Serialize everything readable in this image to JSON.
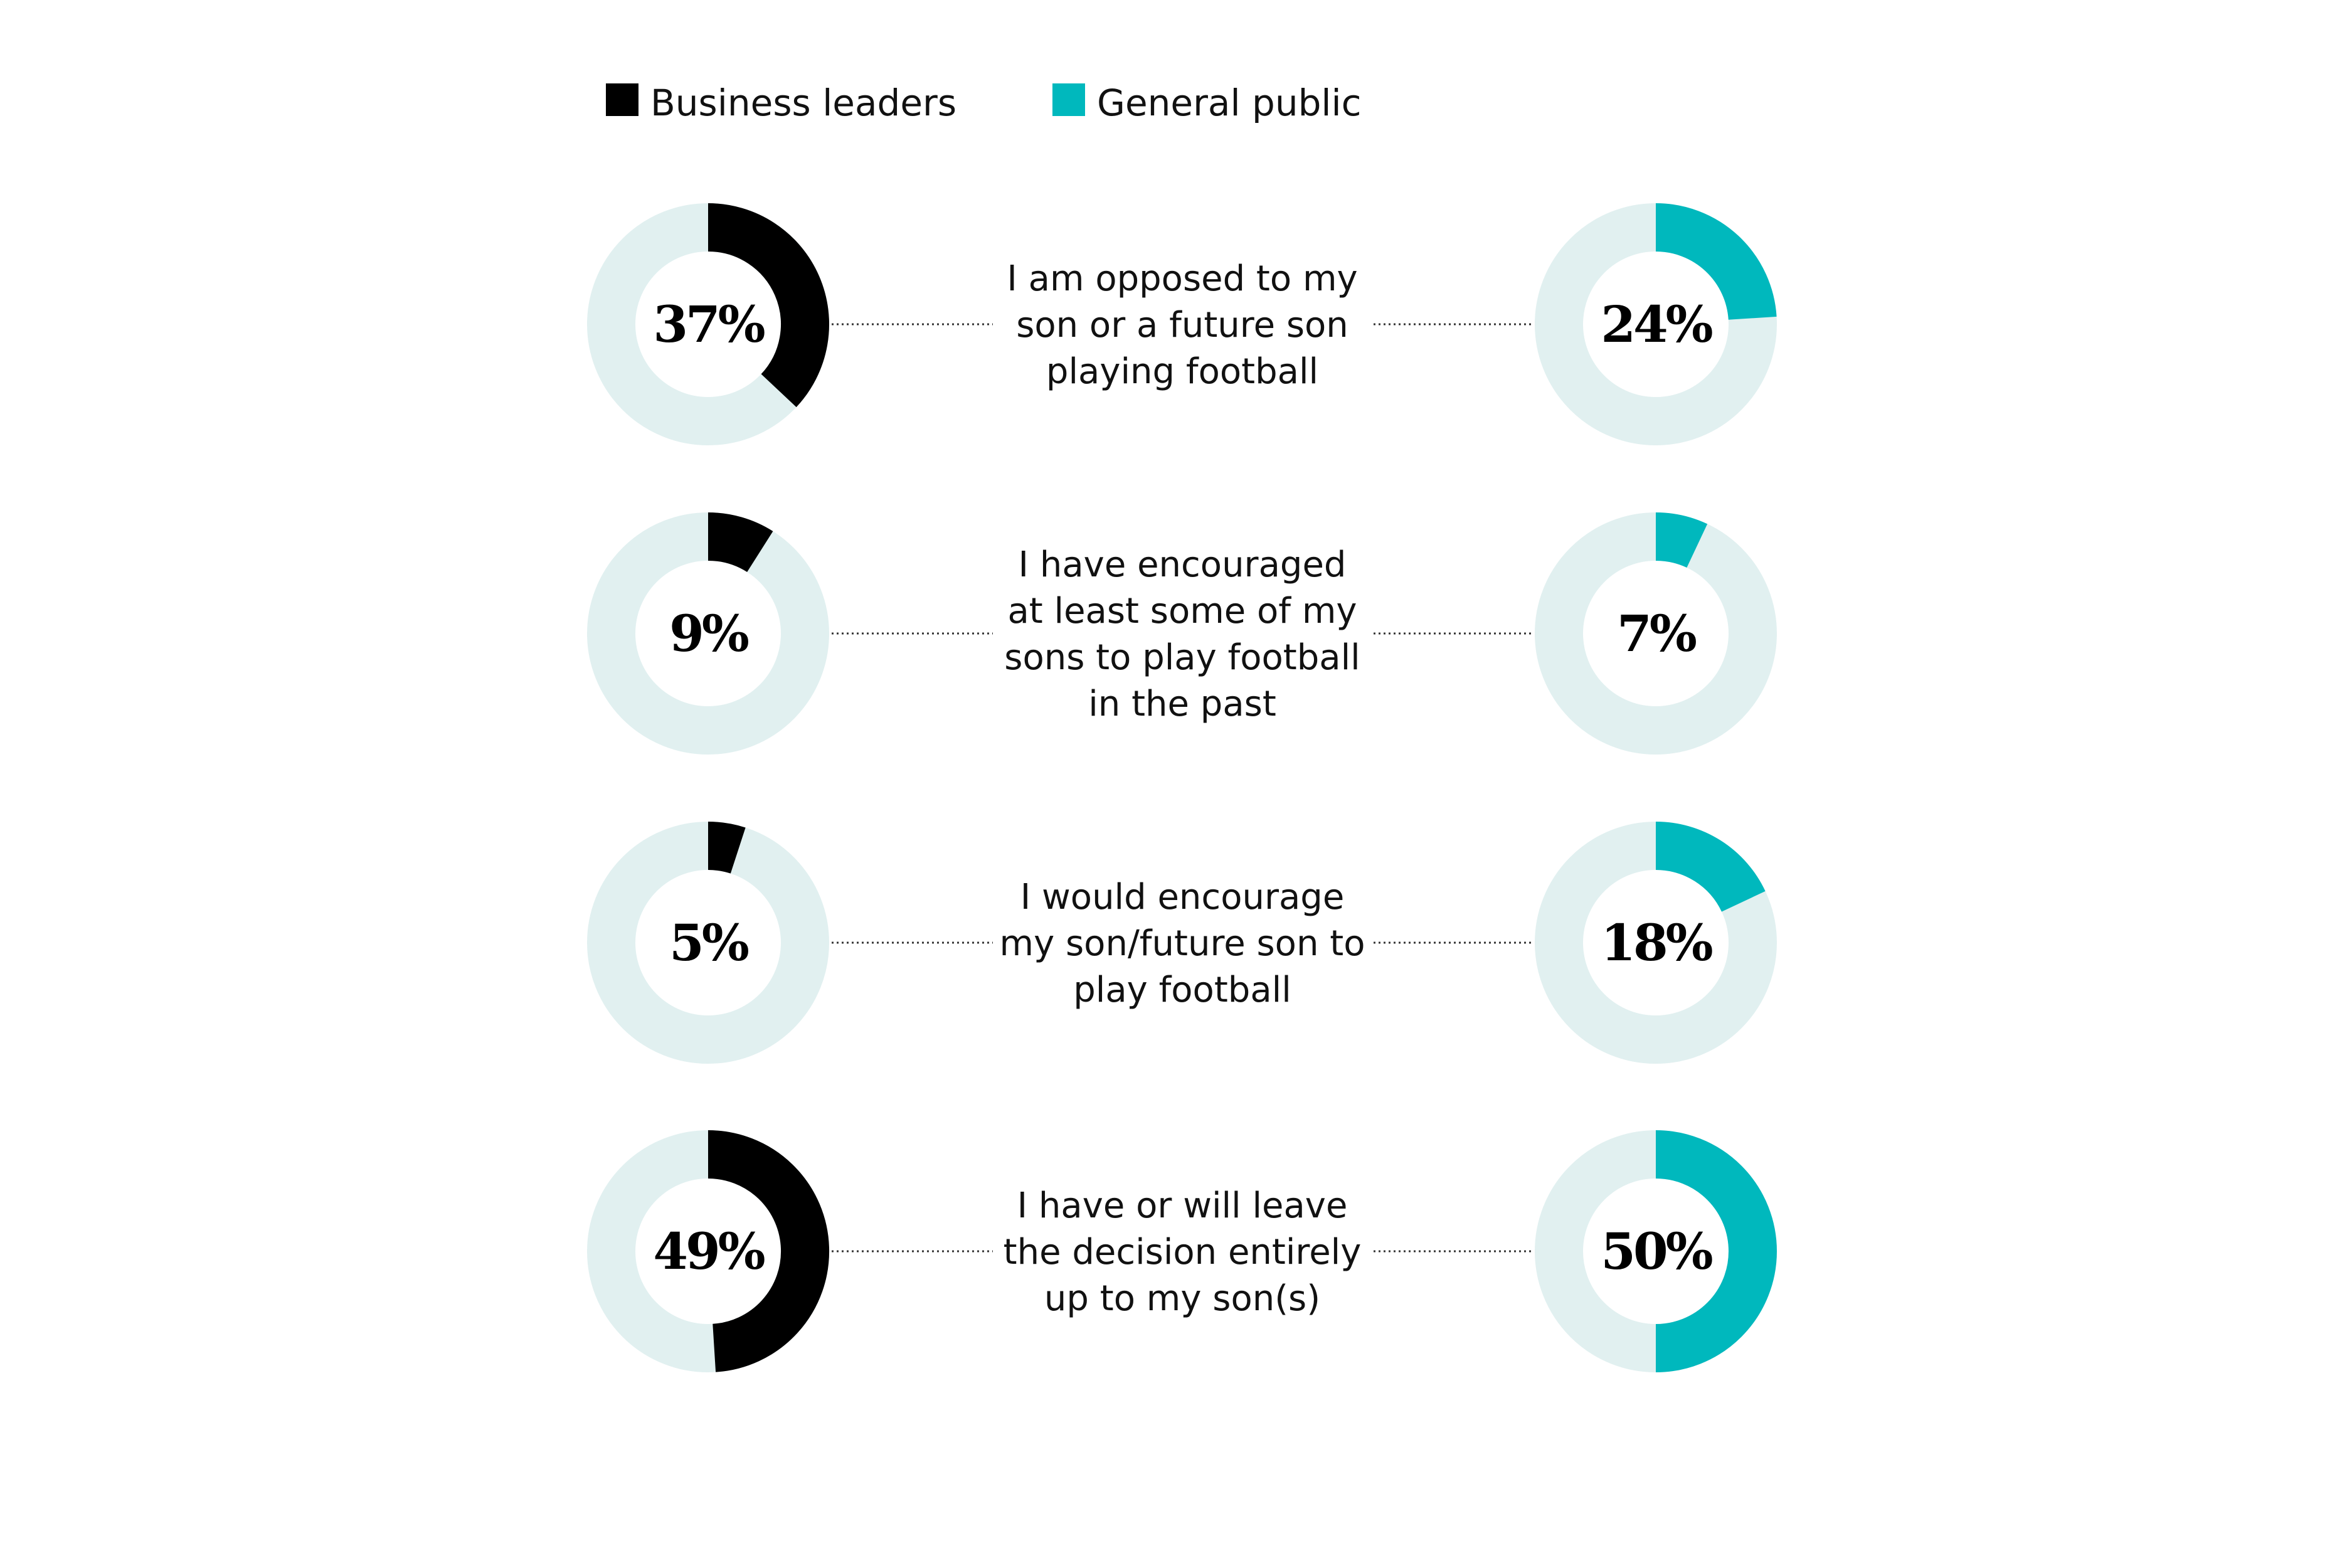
{
  "chart_data": {
    "type": "donut",
    "legend": [
      {
        "name": "Business leaders",
        "color": "#000000"
      },
      {
        "name": "General public",
        "color": "#00b8bd"
      }
    ],
    "track_color": "#e1f0f0",
    "rows": [
      {
        "statement_lines": [
          "I am opposed to my",
          "son or a future son",
          "playing football"
        ],
        "business_leaders": {
          "value": 37,
          "label": "37%"
        },
        "general_public": {
          "value": 24,
          "label": "24%"
        }
      },
      {
        "statement_lines": [
          "I have encouraged",
          "at least some of my",
          "sons to play football",
          "in the past"
        ],
        "business_leaders": {
          "value": 9,
          "label": "9%"
        },
        "general_public": {
          "value": 7,
          "label": "7%"
        }
      },
      {
        "statement_lines": [
          "I would encourage",
          "my son/future son to",
          "play football"
        ],
        "business_leaders": {
          "value": 5,
          "label": "5%"
        },
        "general_public": {
          "value": 18,
          "label": "18%"
        }
      },
      {
        "statement_lines": [
          "I have or will leave",
          "the decision entirely",
          "up to my son(s)"
        ],
        "business_leaders": {
          "value": 49,
          "label": "49%"
        },
        "general_public": {
          "value": 50,
          "label": "50%"
        }
      }
    ]
  }
}
